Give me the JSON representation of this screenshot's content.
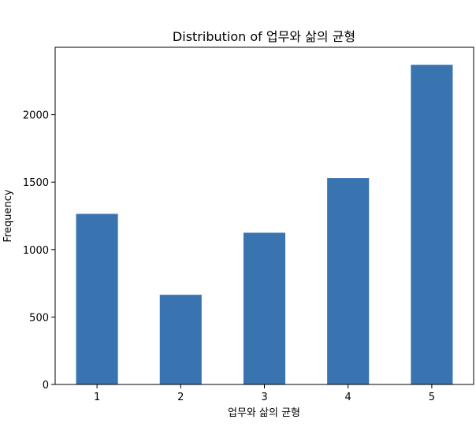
{
  "chart_data": {
    "type": "bar",
    "title": "Distribution of 업무와 삶의 균형",
    "xlabel": "업무와 삶의 균형",
    "ylabel": "Frequency",
    "categories": [
      "1",
      "2",
      "3",
      "4",
      "5"
    ],
    "values": [
      1265,
      665,
      1125,
      1530,
      2370
    ],
    "ylim": [
      0,
      2500
    ],
    "yticks": [
      0,
      500,
      1000,
      1500,
      2000
    ],
    "bar_color": "#3a74b0",
    "grid": false,
    "legend": "none"
  }
}
